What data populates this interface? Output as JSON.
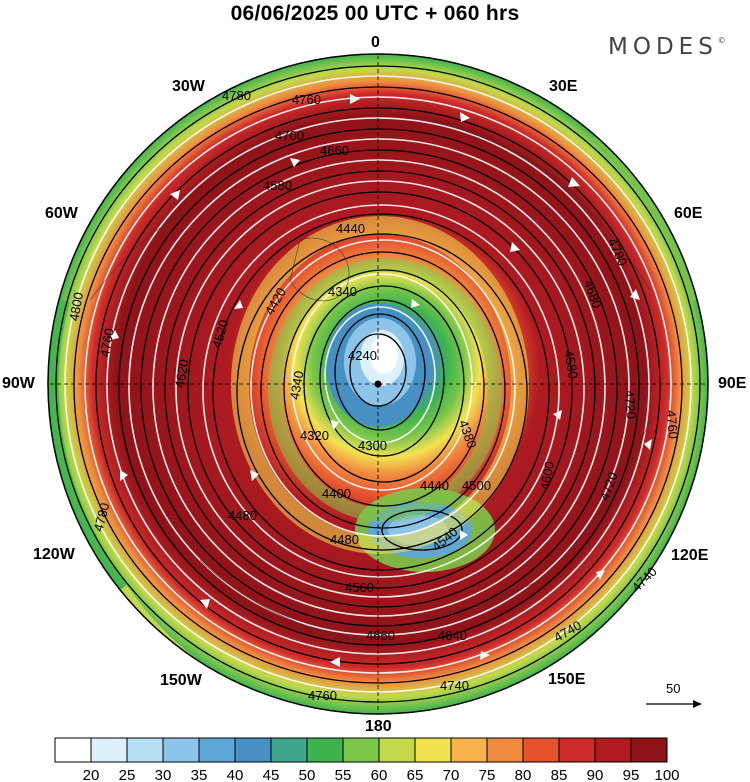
{
  "title": "06/06/2025  00 UTC  + 060 hrs",
  "brand": "MODES",
  "brand_mark": "©",
  "longitude_labels": {
    "lon_0": "0",
    "lon_30e": "30E",
    "lon_60e": "60E",
    "lon_90e": "90E",
    "lon_120e": "120E",
    "lon_150e": "150E",
    "lon_180": "180",
    "lon_150w": "150W",
    "lon_120w": "120W",
    "lon_90w": "90W",
    "lon_60w": "60W",
    "lon_30w": "30W"
  },
  "reference_vector": "50",
  "colorbar": {
    "labels": [
      "20",
      "25",
      "30",
      "35",
      "40",
      "45",
      "50",
      "55",
      "60",
      "65",
      "70",
      "75",
      "80",
      "85",
      "90",
      "95",
      "100"
    ],
    "colors": [
      "#ffffff",
      "#dcf1fb",
      "#b5e0f5",
      "#8dc5ea",
      "#5ea8d9",
      "#4690c4",
      "#3fa78d",
      "#3fb44e",
      "#7cc64a",
      "#c3d94a",
      "#f3e250",
      "#f7b24b",
      "#f08a3f",
      "#e4522e",
      "#cd2a2a",
      "#b01b22",
      "#8e1319"
    ]
  },
  "contour_labels": {
    "c1": "4760",
    "c2": "4780",
    "c3": "4700",
    "c4": "4660",
    "c5": "4580",
    "c6": "4440",
    "c7": "4340",
    "c8": "4240",
    "c9": "4300",
    "c10": "4400",
    "c11": "4480",
    "c12": "4560",
    "c13": "4640",
    "c14": "4680",
    "c15": "4740",
    "c16": "4780",
    "c17": "4620",
    "c18": "4520",
    "c19": "4420",
    "c20": "4800",
    "c21": "4780",
    "c22": "4720",
    "c23": "4600",
    "c24": "4380",
    "c25": "4500",
    "c26": "4540",
    "c27": "4560",
    "c28": "4740",
    "c29": "4320",
    "c30": "4640"
  }
}
